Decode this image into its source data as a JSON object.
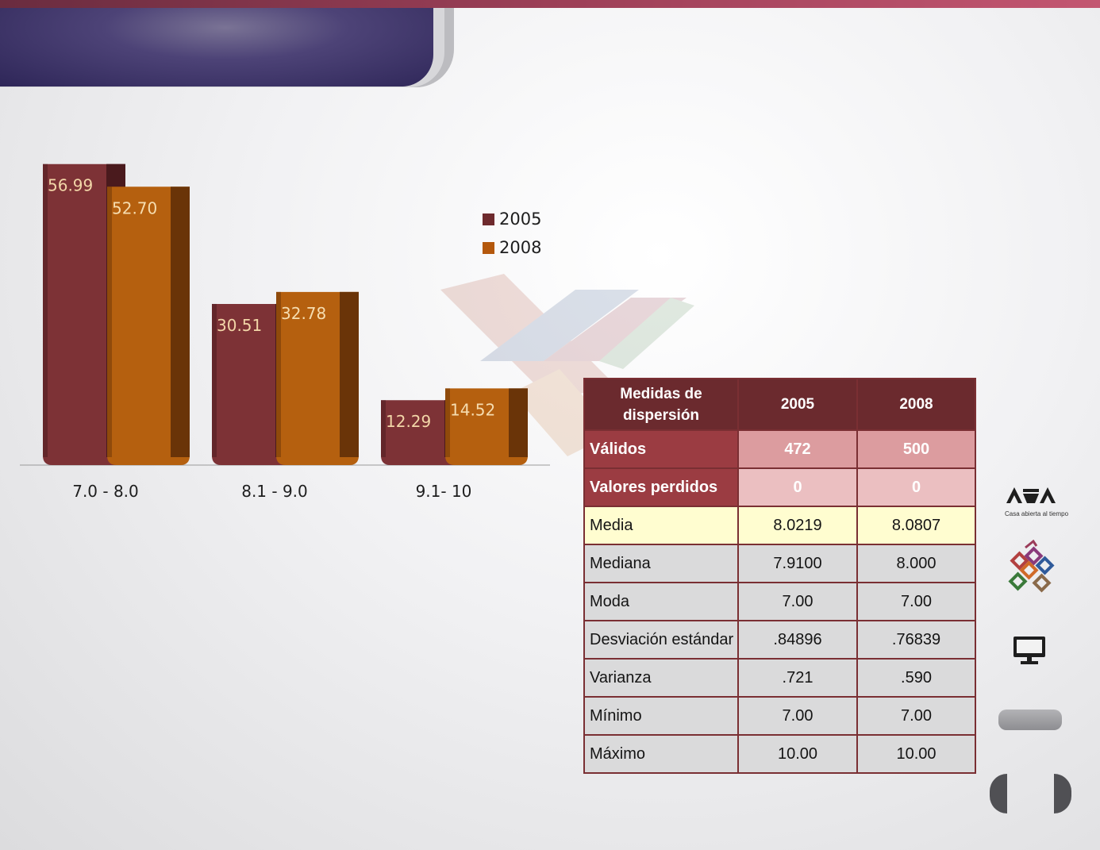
{
  "slide": {
    "title": "",
    "colors": {
      "top_band": "#9c3f57",
      "title_tab": "#3a3168",
      "series_2005": "#6e2a2d",
      "series_2008": "#a4520e",
      "table_header": "#6b2a2e"
    }
  },
  "chart_data": {
    "type": "bar",
    "categories": [
      "7.0 - 8.0",
      "8.1 - 9.0",
      "9.1- 10"
    ],
    "series": [
      {
        "name": "2005",
        "values": [
          56.99,
          30.51,
          12.29
        ],
        "color": "#6e2a2d",
        "label_color": "#f2d6a8"
      },
      {
        "name": "2008",
        "values": [
          52.7,
          32.78,
          14.52
        ],
        "color": "#a4520e",
        "label_color": "#f6ddb0"
      }
    ],
    "value_labels": [
      [
        "56.99",
        "30.51",
        "12.29"
      ],
      [
        "52.70",
        "32.78",
        "14.52"
      ]
    ],
    "title": "",
    "xlabel": "",
    "ylabel": "",
    "ylim": [
      0,
      60
    ],
    "legend": "right",
    "grid": false
  },
  "stats_table": {
    "headers": [
      "Medidas  de dispersión",
      "2005",
      "2008"
    ],
    "rows": [
      {
        "label": "Válidos",
        "v2005": "472",
        "v2008": "500"
      },
      {
        "label": "Valores perdidos",
        "v2005": "0",
        "v2008": "0"
      },
      {
        "label": "Media",
        "v2005": "8.0219",
        "v2008": "8.0807"
      },
      {
        "label": "Mediana",
        "v2005": "7.9100",
        "v2008": "8.000"
      },
      {
        "label": "Moda",
        "v2005": "7.00",
        "v2008": "7.00"
      },
      {
        "label": "Desviación estándar",
        "v2005": ".84896",
        "v2008": ".76839"
      },
      {
        "label": "Varianza",
        "v2005": ".721",
        "v2008": ".590"
      },
      {
        "label": "Mínimo",
        "v2005": "7.00",
        "v2008": "7.00"
      },
      {
        "label": "Máximo",
        "v2005": "10.00",
        "v2008": "10.00"
      }
    ]
  },
  "sidebar": {
    "uam_caption": "Casa abierta al tiempo",
    "icons": [
      "uam-logo-icon",
      "colored-squares-logo-icon",
      "monitor-icon",
      "gray-button",
      "prev-arrow",
      "next-arrow"
    ]
  }
}
